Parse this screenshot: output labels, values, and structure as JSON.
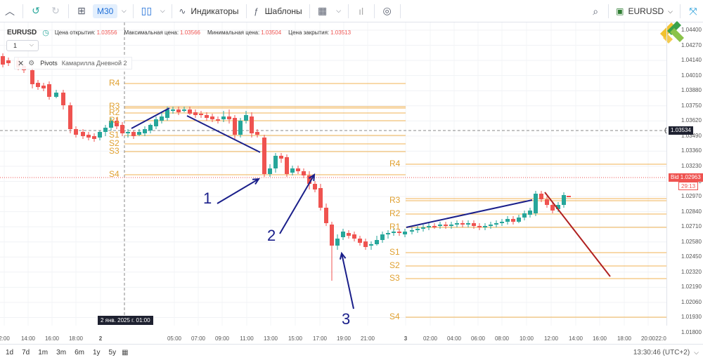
{
  "toolbar": {
    "timeframe": "M30",
    "indicators_label": "Индикаторы",
    "templates_label": "Шаблоны",
    "symbol": "EURUSD"
  },
  "legend": {
    "symbol": "EURUSD",
    "open_label": "Цена открытия:",
    "open_value": "1.03556",
    "high_label": "Максимальная цена:",
    "high_value": "1.03566",
    "low_label": "Минимальная цена:",
    "low_value": "1.03504",
    "close_label": "Цена закрытия:",
    "close_value": "1.03513"
  },
  "lot_select": {
    "value": "1"
  },
  "indicator_panel": {
    "name": "Pivots",
    "description": "Камарилла Дневной 2"
  },
  "price_axis": {
    "ticks": [
      "1.04400",
      "1.04270",
      "1.04140",
      "1.04010",
      "1.03880",
      "1.03750",
      "1.03620",
      "1.03490",
      "1.03360",
      "1.03230",
      "1.03100",
      "1.02970",
      "1.02840",
      "1.02710",
      "1.02580",
      "1.02450",
      "1.02320",
      "1.02190",
      "1.02060",
      "1.01930",
      "1.01800"
    ],
    "crosshair_price": "1.03534",
    "bid_label": "Bid 1.02963",
    "countdown": "29:13"
  },
  "time_axis": {
    "ticks": [
      "2:00",
      "14:00",
      "16:00",
      "18:00",
      "2",
      "05:00",
      "07:00",
      "09:00",
      "11:00",
      "13:00",
      "15:00",
      "17:00",
      "19:00",
      "21:00",
      "3",
      "02:00",
      "04:00",
      "06:00",
      "08:00",
      "10:00",
      "12:00",
      "14:00",
      "16:00",
      "18:00",
      "20:00",
      "22:0"
    ],
    "crosshair_time": "2 янв. 2025 г. 01:00"
  },
  "pivot_labels_day1": [
    "R4",
    "R3",
    "R2",
    "R1",
    "S1",
    "S2",
    "S3",
    "S4"
  ],
  "pivot_labels_day2": [
    "R4",
    "R3",
    "R2",
    "R1",
    "S1",
    "S2",
    "S3",
    "S4"
  ],
  "annotations": [
    "1",
    "2",
    "3"
  ],
  "bottom_bar": {
    "ranges": [
      "1d",
      "7d",
      "1m",
      "3m",
      "6m",
      "1y",
      "5y"
    ],
    "clock": "13:30:46 (UTC+2)"
  },
  "colors": {
    "up": "#26a69a",
    "down": "#ef5350",
    "pivot": "#f0b354",
    "pivot_label": "#e0a030",
    "annotation": "#1a1f8a",
    "trend_down": "#b02020",
    "bid_line": "#ef5350"
  }
}
